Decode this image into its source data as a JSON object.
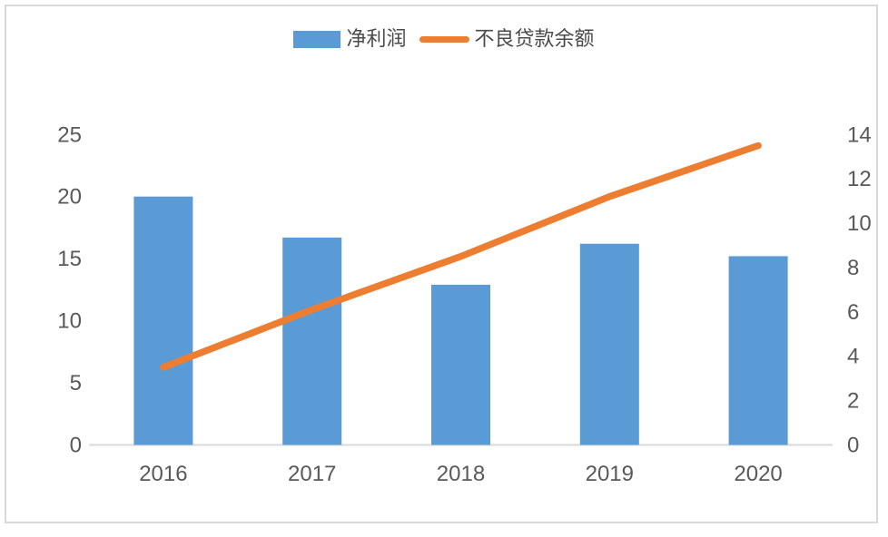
{
  "chart_data": {
    "type": "bar+line",
    "title": "",
    "categories": [
      "2016",
      "2017",
      "2018",
      "2019",
      "2020"
    ],
    "series": [
      {
        "name": "净利润",
        "type": "bar",
        "axis": "left",
        "color": "#5B9BD5",
        "values": [
          20,
          16.7,
          12.9,
          16.2,
          15.2
        ]
      },
      {
        "name": "不良贷款余额",
        "type": "line",
        "axis": "right",
        "color": "#ED7D31",
        "values": [
          3.5,
          6.1,
          8.5,
          11.2,
          13.5
        ]
      }
    ],
    "left_axis": {
      "ticks": [
        0,
        5,
        10,
        15,
        20,
        25
      ],
      "range": [
        0,
        25
      ]
    },
    "right_axis": {
      "ticks": [
        0,
        2,
        4,
        6,
        8,
        10,
        12,
        14
      ],
      "range": [
        0,
        14
      ]
    },
    "legend_position": "top",
    "grid": false,
    "axis_line_color": "#D9D9D9",
    "frame_color": "#D9D9D9",
    "text_color": "#595959"
  }
}
